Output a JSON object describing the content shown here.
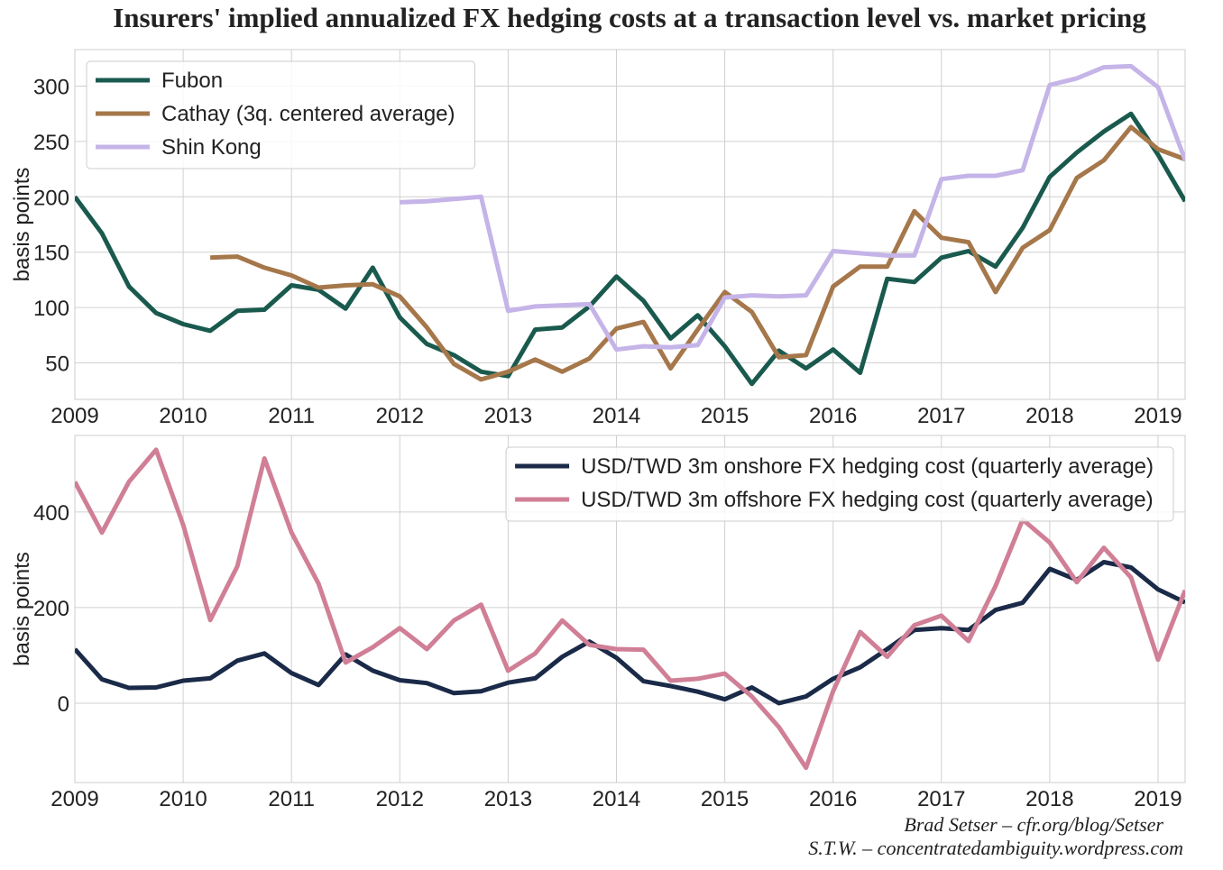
{
  "title": "Insurers' implied annualized FX hedging costs at a transaction level vs. market pricing",
  "credits": [
    "Brad Setser – cfr.org/blog/Setser",
    "S.T.W. – concentratedambiguity.wordpress.com"
  ],
  "chart_data": [
    {
      "type": "line",
      "ylabel": "basis points",
      "legend": "upper left",
      "grid": true,
      "x": [
        2009,
        2009.25,
        2009.5,
        2009.75,
        2010,
        2010.25,
        2010.5,
        2010.75,
        2011,
        2011.25,
        2011.5,
        2011.75,
        2012,
        2012.25,
        2012.5,
        2012.75,
        2013,
        2013.25,
        2013.5,
        2013.75,
        2014,
        2014.25,
        2014.5,
        2014.75,
        2015,
        2015.25,
        2015.5,
        2015.75,
        2016,
        2016.25,
        2016.5,
        2016.75,
        2017,
        2017.25,
        2017.5,
        2017.75,
        2018,
        2018.25,
        2018.5,
        2018.75,
        2019,
        2019.25
      ],
      "xlim": [
        2009,
        2019.25
      ],
      "xticks": [
        2009,
        2010,
        2011,
        2012,
        2013,
        2014,
        2015,
        2016,
        2017,
        2018,
        2019
      ],
      "ylim": [
        17,
        333
      ],
      "yticks": [
        50,
        100,
        150,
        200,
        250,
        300
      ],
      "series": [
        {
          "name": "Fubon",
          "color": "#1a5a4e",
          "values": [
            200,
            167,
            119,
            95,
            85,
            79,
            97,
            98,
            120,
            116,
            99,
            136,
            91,
            67,
            57,
            42,
            38,
            80,
            82,
            101,
            128,
            106,
            72,
            93,
            65,
            31,
            61,
            45,
            62,
            41,
            126,
            123,
            145,
            151,
            137,
            172,
            218,
            240,
            259,
            275,
            238,
            196
          ]
        },
        {
          "name": "Cathay (3q. centered average)",
          "color": "#a5774a",
          "values": [
            null,
            null,
            null,
            null,
            null,
            145,
            146,
            136,
            129,
            118,
            120,
            121,
            110,
            82,
            49,
            35,
            42,
            53,
            42,
            54,
            81,
            87,
            45,
            80,
            114,
            96,
            55,
            57,
            119,
            137,
            137,
            187,
            163,
            159,
            114,
            154,
            170,
            217,
            233,
            263,
            243,
            234
          ]
        },
        {
          "name": "Shin Kong",
          "color": "#c5b4e8",
          "values": [
            null,
            null,
            null,
            null,
            null,
            null,
            null,
            null,
            null,
            null,
            null,
            null,
            195,
            196,
            198,
            200,
            97,
            101,
            102,
            103,
            62,
            65,
            64,
            66,
            109,
            111,
            110,
            111,
            151,
            149,
            147,
            147,
            216,
            219,
            219,
            224,
            301,
            307,
            317,
            318,
            299,
            233
          ]
        }
      ]
    },
    {
      "type": "line",
      "ylabel": "basis points",
      "legend": "upper right",
      "grid": true,
      "x": [
        2009,
        2009.25,
        2009.5,
        2009.75,
        2010,
        2010.25,
        2010.5,
        2010.75,
        2011,
        2011.25,
        2011.5,
        2011.75,
        2012,
        2012.25,
        2012.5,
        2012.75,
        2013,
        2013.25,
        2013.5,
        2013.75,
        2014,
        2014.25,
        2014.5,
        2014.75,
        2015,
        2015.25,
        2015.5,
        2015.75,
        2016,
        2016.25,
        2016.5,
        2016.75,
        2017,
        2017.25,
        2017.5,
        2017.75,
        2018,
        2018.25,
        2018.5,
        2018.75,
        2019,
        2019.25
      ],
      "xlim": [
        2009,
        2019.25
      ],
      "xticks": [
        2009,
        2010,
        2011,
        2012,
        2013,
        2014,
        2015,
        2016,
        2017,
        2018,
        2019
      ],
      "ylim": [
        -166,
        560
      ],
      "yticks": [
        0,
        200,
        400
      ],
      "series": [
        {
          "name": "USD/TWD 3m onshore FX hedging cost (quarterly average)",
          "color": "#1a2a48",
          "values": [
            113,
            50,
            32,
            33,
            47,
            52,
            89,
            104,
            63,
            38,
            102,
            68,
            48,
            42,
            21,
            25,
            43,
            52,
            97,
            129,
            95,
            46,
            36,
            24,
            8,
            33,
            0,
            14,
            51,
            75,
            113,
            153,
            157,
            153,
            195,
            210,
            281,
            258,
            295,
            284,
            238,
            211
          ]
        },
        {
          "name": "USD/TWD 3m offshore FX hedging cost (quarterly average)",
          "color": "#d07f96",
          "values": [
            463,
            357,
            463,
            530,
            373,
            174,
            286,
            512,
            357,
            250,
            85,
            117,
            157,
            113,
            173,
            206,
            68,
            104,
            173,
            122,
            113,
            112,
            47,
            51,
            62,
            14,
            -50,
            -135,
            25,
            149,
            97,
            163,
            183,
            130,
            245,
            384,
            336,
            253,
            325,
            263,
            91,
            236
          ]
        }
      ]
    }
  ]
}
